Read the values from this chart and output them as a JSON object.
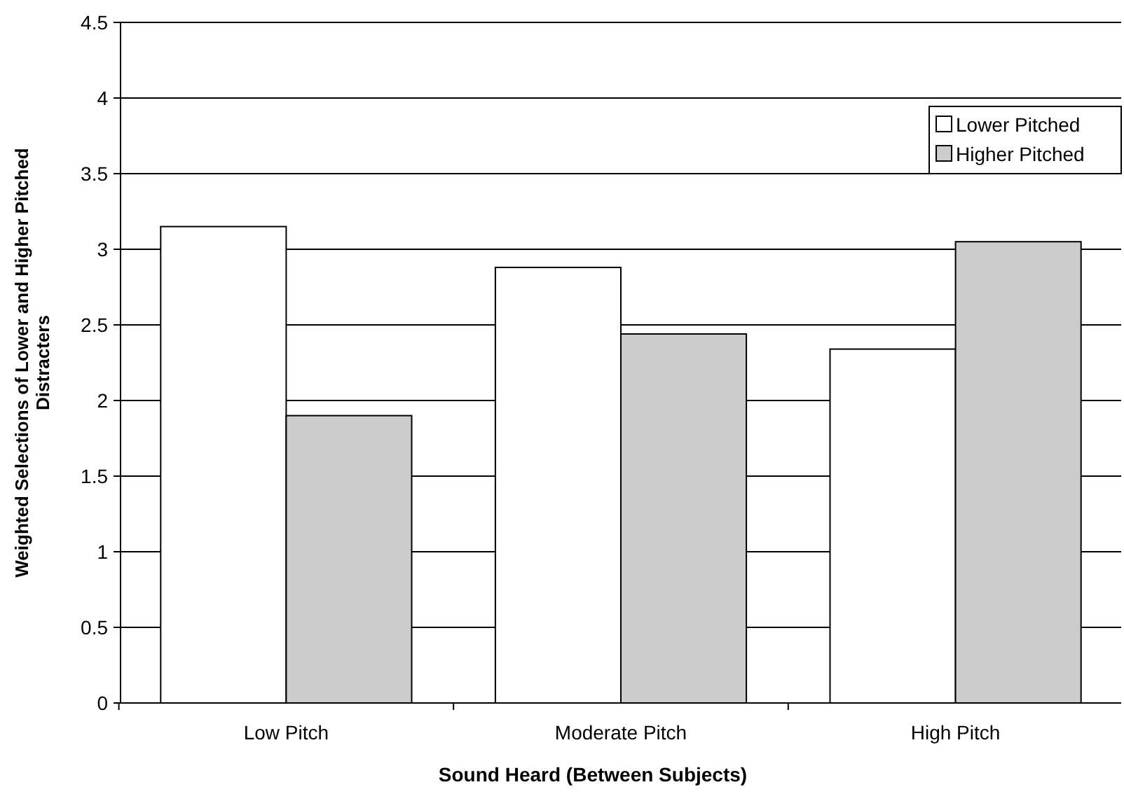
{
  "chart_data": {
    "type": "bar",
    "xlabel": "Sound Heard (Between Subjects)",
    "ylabel": "Weighted Selections of Lower and Higher Pitched Distracters",
    "categories": [
      "Low Pitch",
      "Moderate Pitch",
      "High Pitch"
    ],
    "series": [
      {
        "name": "Lower Pitched",
        "color": "#ffffff",
        "values": [
          3.15,
          2.88,
          2.34
        ]
      },
      {
        "name": "Higher Pitched",
        "color": "#cccccc",
        "values": [
          1.9,
          2.44,
          3.05
        ]
      }
    ],
    "ylim": [
      0,
      4.5
    ],
    "yticks": [
      0,
      0.5,
      1,
      1.5,
      2,
      2.5,
      3,
      3.5,
      4,
      4.5
    ],
    "grid": "y",
    "legend": "right"
  }
}
